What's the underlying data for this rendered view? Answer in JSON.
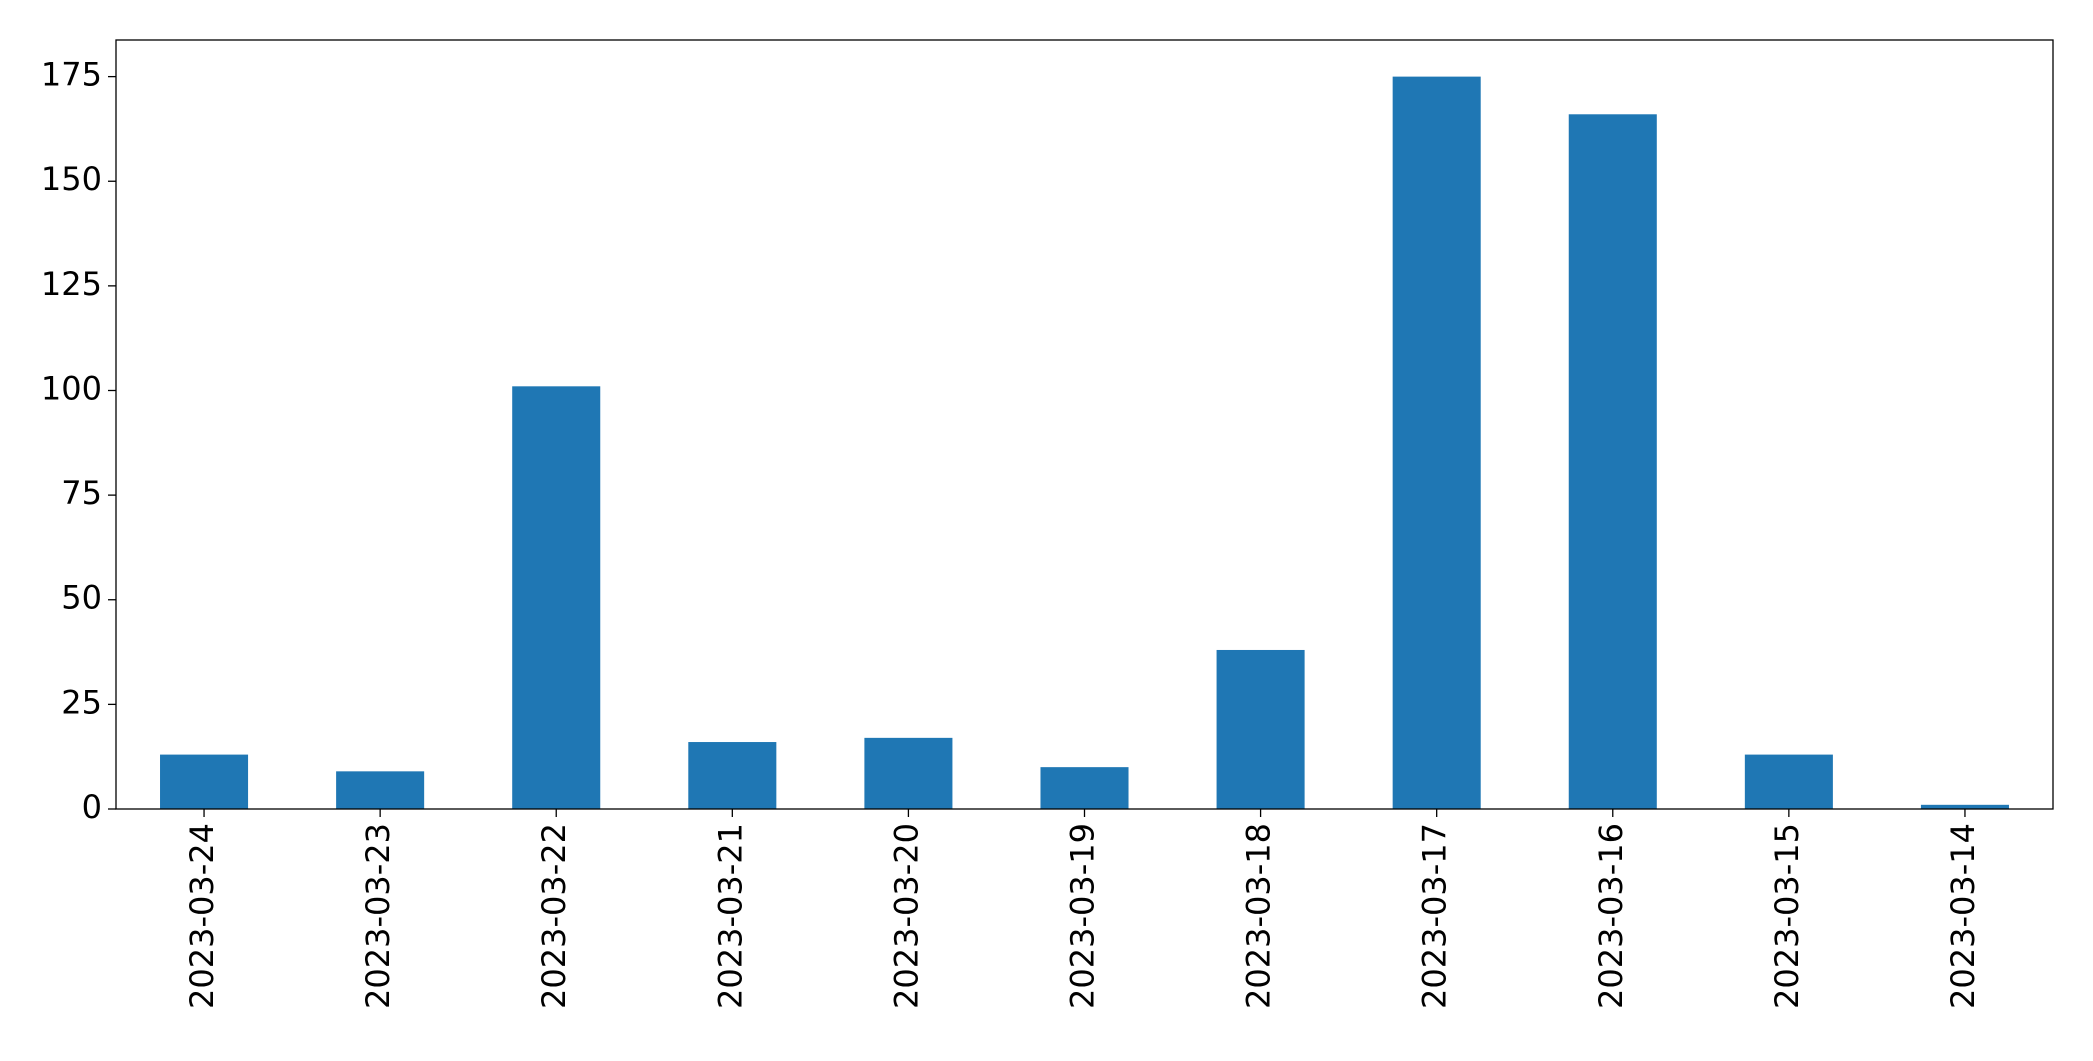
{
  "chart_data": {
    "type": "bar",
    "categories": [
      "2023-03-24",
      "2023-03-23",
      "2023-03-22",
      "2023-03-21",
      "2023-03-20",
      "2023-03-19",
      "2023-03-18",
      "2023-03-17",
      "2023-03-16",
      "2023-03-15",
      "2023-03-14"
    ],
    "values": [
      13,
      9,
      101,
      16,
      17,
      10,
      38,
      175,
      166,
      13,
      1
    ],
    "color": "#1f77b4",
    "ylim": [
      0,
      183.75
    ],
    "yticks": [
      0,
      25,
      50,
      75,
      100,
      125,
      150,
      175
    ],
    "grid": false
  }
}
